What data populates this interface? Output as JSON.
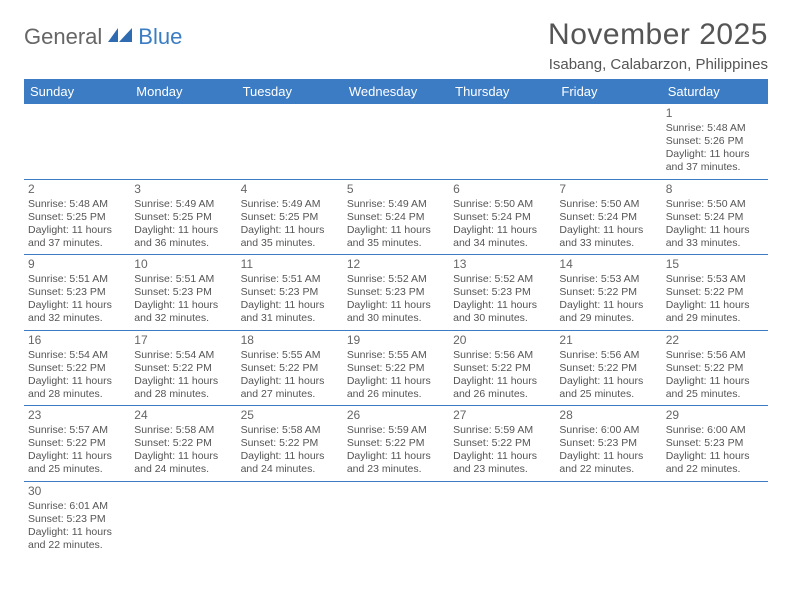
{
  "logo": {
    "part1": "General",
    "part2": "Blue"
  },
  "title": "November 2025",
  "location": "Isabang, Calabarzon, Philippines",
  "colors": {
    "header_bg": "#3b7cc4",
    "header_fg": "#ffffff",
    "cell_border": "#3b7cc4",
    "text": "#555555",
    "logo_gray": "#666666",
    "logo_blue": "#3b7cc4",
    "page_bg": "#ffffff"
  },
  "weekdays": [
    "Sunday",
    "Monday",
    "Tuesday",
    "Wednesday",
    "Thursday",
    "Friday",
    "Saturday"
  ],
  "weeks": [
    [
      null,
      null,
      null,
      null,
      null,
      null,
      {
        "n": "1",
        "sr": "5:48 AM",
        "ss": "5:26 PM",
        "dl": "11 hours and 37 minutes."
      }
    ],
    [
      {
        "n": "2",
        "sr": "5:48 AM",
        "ss": "5:25 PM",
        "dl": "11 hours and 37 minutes."
      },
      {
        "n": "3",
        "sr": "5:49 AM",
        "ss": "5:25 PM",
        "dl": "11 hours and 36 minutes."
      },
      {
        "n": "4",
        "sr": "5:49 AM",
        "ss": "5:25 PM",
        "dl": "11 hours and 35 minutes."
      },
      {
        "n": "5",
        "sr": "5:49 AM",
        "ss": "5:24 PM",
        "dl": "11 hours and 35 minutes."
      },
      {
        "n": "6",
        "sr": "5:50 AM",
        "ss": "5:24 PM",
        "dl": "11 hours and 34 minutes."
      },
      {
        "n": "7",
        "sr": "5:50 AM",
        "ss": "5:24 PM",
        "dl": "11 hours and 33 minutes."
      },
      {
        "n": "8",
        "sr": "5:50 AM",
        "ss": "5:24 PM",
        "dl": "11 hours and 33 minutes."
      }
    ],
    [
      {
        "n": "9",
        "sr": "5:51 AM",
        "ss": "5:23 PM",
        "dl": "11 hours and 32 minutes."
      },
      {
        "n": "10",
        "sr": "5:51 AM",
        "ss": "5:23 PM",
        "dl": "11 hours and 32 minutes."
      },
      {
        "n": "11",
        "sr": "5:51 AM",
        "ss": "5:23 PM",
        "dl": "11 hours and 31 minutes."
      },
      {
        "n": "12",
        "sr": "5:52 AM",
        "ss": "5:23 PM",
        "dl": "11 hours and 30 minutes."
      },
      {
        "n": "13",
        "sr": "5:52 AM",
        "ss": "5:23 PM",
        "dl": "11 hours and 30 minutes."
      },
      {
        "n": "14",
        "sr": "5:53 AM",
        "ss": "5:22 PM",
        "dl": "11 hours and 29 minutes."
      },
      {
        "n": "15",
        "sr": "5:53 AM",
        "ss": "5:22 PM",
        "dl": "11 hours and 29 minutes."
      }
    ],
    [
      {
        "n": "16",
        "sr": "5:54 AM",
        "ss": "5:22 PM",
        "dl": "11 hours and 28 minutes."
      },
      {
        "n": "17",
        "sr": "5:54 AM",
        "ss": "5:22 PM",
        "dl": "11 hours and 28 minutes."
      },
      {
        "n": "18",
        "sr": "5:55 AM",
        "ss": "5:22 PM",
        "dl": "11 hours and 27 minutes."
      },
      {
        "n": "19",
        "sr": "5:55 AM",
        "ss": "5:22 PM",
        "dl": "11 hours and 26 minutes."
      },
      {
        "n": "20",
        "sr": "5:56 AM",
        "ss": "5:22 PM",
        "dl": "11 hours and 26 minutes."
      },
      {
        "n": "21",
        "sr": "5:56 AM",
        "ss": "5:22 PM",
        "dl": "11 hours and 25 minutes."
      },
      {
        "n": "22",
        "sr": "5:56 AM",
        "ss": "5:22 PM",
        "dl": "11 hours and 25 minutes."
      }
    ],
    [
      {
        "n": "23",
        "sr": "5:57 AM",
        "ss": "5:22 PM",
        "dl": "11 hours and 25 minutes."
      },
      {
        "n": "24",
        "sr": "5:58 AM",
        "ss": "5:22 PM",
        "dl": "11 hours and 24 minutes."
      },
      {
        "n": "25",
        "sr": "5:58 AM",
        "ss": "5:22 PM",
        "dl": "11 hours and 24 minutes."
      },
      {
        "n": "26",
        "sr": "5:59 AM",
        "ss": "5:22 PM",
        "dl": "11 hours and 23 minutes."
      },
      {
        "n": "27",
        "sr": "5:59 AM",
        "ss": "5:22 PM",
        "dl": "11 hours and 23 minutes."
      },
      {
        "n": "28",
        "sr": "6:00 AM",
        "ss": "5:23 PM",
        "dl": "11 hours and 22 minutes."
      },
      {
        "n": "29",
        "sr": "6:00 AM",
        "ss": "5:23 PM",
        "dl": "11 hours and 22 minutes."
      }
    ],
    [
      {
        "n": "30",
        "sr": "6:01 AM",
        "ss": "5:23 PM",
        "dl": "11 hours and 22 minutes."
      },
      null,
      null,
      null,
      null,
      null,
      null
    ]
  ],
  "labels": {
    "sunrise": "Sunrise: ",
    "sunset": "Sunset: ",
    "daylight": "Daylight: "
  }
}
